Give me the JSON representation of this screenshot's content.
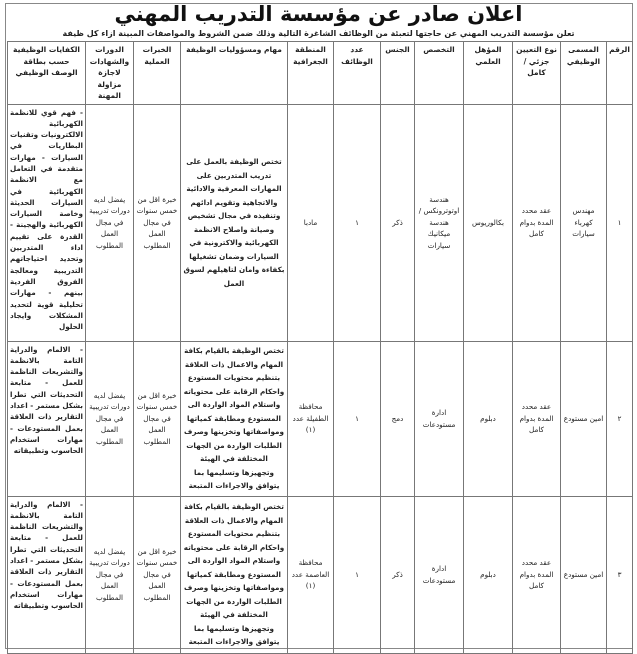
{
  "title": "اعلان صادر عن مؤسسة التدريب المهني",
  "subtitle": "تعلن مؤسسة التدريب المهني عن حاجتها لتعبئة من الوظائف الشاغرة التالية وذلك ضمن الشروط والمواصفات المبينة ازاء كل ظيفة",
  "columns": [
    "الرقم",
    "المسمى الوظيفي",
    "نوع التعيين جزئي / كامل",
    "المؤهل العلمي",
    "التخصص",
    "الجنس",
    "عدد الوظائف",
    "المنطقة الجغرافية",
    "مهام ومسؤوليات الوظيفة",
    "الخبرات العملية",
    "الدورات والشهادات لاجازة مزاولة المهنة",
    "الكفايات الوظيفية حسب بطاقة الوصف الوظيفي"
  ],
  "rows": [
    {
      "num": "١",
      "title": "مهندس كهرباء سيارات",
      "type": "عقد محدد المدة بدوام كامل",
      "qualification": "بكالوريوس",
      "major": "هندسة اوتوترونكس / هندسة ميكانيك سيارات",
      "gender": "ذكر",
      "count": "١",
      "region": "مادبا",
      "tasks": "تختص الوظيفة بالعمل على تدريب المتدربين على المهارات المعرفية والادائية والاتجاهية وتقويم ادائهم وتنفيذه في مجال تشخيص وصيانة واصلاح الانظمة الكهربائية والاكترونية في السيارات وضمان تشغيلها بكفاءة وامان لتاهيلهم لسوق العمل",
      "experience": "خبرة اقل من خمس سنوات في مجال العمل المطلوب",
      "courses": "يفضل لديه دورات تدريبية في مجال العمل المطلوب",
      "competencies": "- فهم قوي للانظمة الكهربائية الالكترونيات وتقنيات البطاريات في السيارات - مهارات متقدمة في التعامل مع الانظمة الكهربائية في السيارات الحديثة وخاصة السيارات الكهربائية والهجينة - القدرة على تقييم اداء المتدربين وتحديد احتياجاتهم التدريبية ومعالجة الفروق الفردية بينهم - مهارات تحليلية قوية لتحديد المشكلات وايجاد الحلول"
    },
    {
      "num": "٢",
      "title": "امين مستودع",
      "type": "عقد محدد المدة بدوام كامل",
      "qualification": "دبلوم",
      "major": "ادارة مستودعات",
      "gender": "دمج",
      "count": "١",
      "region": "محافظة الطفيلة عدد (١)",
      "tasks": "تختص الوظيفة بالقيام بكافة المهام والاعمال ذات العلاقة بتنظيم محتويات المستودع واحكام الرقابة على محتوياته واستلام المواد الواردة الى المستودع ومطابقة كمياتها ومواصفاتها وتخزينها وصرف الطلبات الواردة من الجهات المختلفة في الهيئة وتجهيزها وتسليمها بما يتوافق والاجراءات المتبعة",
      "experience": "خبرة اقل من خمس سنوات في مجال العمل المطلوب",
      "courses": "يفضل لديه دورات تدريبية في مجال العمل المطلوب",
      "competencies": "- الالمام والدراية التامة بالانظمة والتشريعات الناظمة للعمل - متابعة التحديثات التي تطرا بشكل مستمر - اعداد التقارير ذات العلاقة بعمل المستودعات - مهارات استخدام الحاسوب وتطبيقاته"
    },
    {
      "num": "٣",
      "title": "امين مستودع",
      "type": "عقد محدد المدة بدوام كامل",
      "qualification": "دبلوم",
      "major": "ادارة مستودعات",
      "gender": "ذكر",
      "count": "١",
      "region": "محافظة العاصمة عدد (١)",
      "tasks": "تختص الوظيفة بالقيام بكافة المهام والاعمال ذات العلاقة بتنظيم محتويات المستودع واحكام الرقابة على محتوياته واستلام المواد الواردة الى المستودع ومطابقة كمياتها ومواصفاتها وتخزينها وصرف الطلبات الواردة من الجهات المختلفة في الهيئة وتجهيزها وتسليمها بما يتوافق والاجراءات المتبعة",
      "experience": "خبرة اقل من خمس سنوات في مجال العمل المطلوب",
      "courses": "يفضل لديه دورات تدريبية في مجال العمل المطلوب",
      "competencies": "- الالمام والدراية التامة بالانظمة والتشريعات الناظمة للعمل - متابعة التحديثات التي تطرا بشكل مستمر - اعداد التقارير ذات العلاقة بعمل المستودعات - مهارات استخدام الحاسوب وتطبيقاته"
    }
  ]
}
